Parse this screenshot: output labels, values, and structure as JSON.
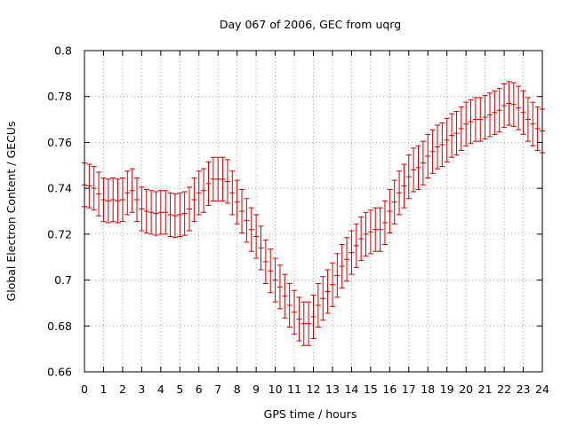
{
  "chart_data": {
    "type": "line",
    "title": "Day 067 of 2006, GEC from uqrg",
    "xlabel": "GPS time / hours",
    "ylabel": "Global Electron Content / GECUs",
    "xlim": [
      0,
      24
    ],
    "ylim": [
      0.66,
      0.8
    ],
    "grid": true,
    "x_ticks": [
      "0",
      "1",
      "2",
      "3",
      "4",
      "5",
      "6",
      "7",
      "8",
      "9",
      "10",
      "11",
      "12",
      "13",
      "14",
      "15",
      "16",
      "17",
      "18",
      "19",
      "20",
      "21",
      "22",
      "23",
      "24"
    ],
    "y_ticks": [
      "0.66",
      "0.68",
      "0.7",
      "0.72",
      "0.74",
      "0.76",
      "0.78",
      "0.8"
    ],
    "color": "#cc0000",
    "error_halfwidth": 0.0095,
    "series": [
      {
        "name": "GEC",
        "x": [
          0,
          0.25,
          0.5,
          0.75,
          1,
          1.25,
          1.5,
          1.75,
          2,
          2.25,
          2.5,
          2.75,
          3,
          3.25,
          3.5,
          3.75,
          4,
          4.25,
          4.5,
          4.75,
          5,
          5.25,
          5.5,
          5.75,
          6,
          6.25,
          6.5,
          6.75,
          7,
          7.25,
          7.5,
          7.75,
          8,
          8.25,
          8.5,
          8.75,
          9,
          9.25,
          9.5,
          9.75,
          10,
          10.25,
          10.5,
          10.75,
          11,
          11.25,
          11.5,
          11.75,
          12,
          12.25,
          12.5,
          12.75,
          13,
          13.25,
          13.5,
          13.75,
          14,
          14.25,
          14.5,
          14.75,
          15,
          15.25,
          15.5,
          15.75,
          16,
          16.25,
          16.5,
          16.75,
          17,
          17.25,
          17.5,
          17.75,
          18,
          18.25,
          18.5,
          18.75,
          19,
          19.25,
          19.5,
          19.75,
          20,
          20.25,
          20.5,
          20.75,
          21,
          21.25,
          21.5,
          21.75,
          22,
          22.25,
          22.5,
          22.75,
          23,
          23.25,
          23.5,
          23.75,
          24
        ],
        "y": [
          0.7415,
          0.741,
          0.74,
          0.7375,
          0.735,
          0.7345,
          0.735,
          0.7345,
          0.735,
          0.738,
          0.739,
          0.735,
          0.731,
          0.73,
          0.7295,
          0.729,
          0.7295,
          0.7295,
          0.7285,
          0.728,
          0.7285,
          0.729,
          0.731,
          0.735,
          0.738,
          0.739,
          0.742,
          0.744,
          0.744,
          0.744,
          0.743,
          0.738,
          0.734,
          0.73,
          0.726,
          0.722,
          0.719,
          0.714,
          0.708,
          0.704,
          0.7,
          0.697,
          0.693,
          0.689,
          0.686,
          0.683,
          0.681,
          0.681,
          0.684,
          0.689,
          0.692,
          0.695,
          0.698,
          0.702,
          0.706,
          0.709,
          0.712,
          0.715,
          0.718,
          0.72,
          0.721,
          0.722,
          0.722,
          0.725,
          0.73,
          0.734,
          0.738,
          0.741,
          0.745,
          0.748,
          0.749,
          0.751,
          0.754,
          0.756,
          0.758,
          0.759,
          0.761,
          0.763,
          0.764,
          0.766,
          0.768,
          0.769,
          0.77,
          0.77,
          0.771,
          0.772,
          0.773,
          0.774,
          0.776,
          0.777,
          0.7765,
          0.775,
          0.773,
          0.77,
          0.768,
          0.766,
          0.765
        ]
      }
    ]
  }
}
